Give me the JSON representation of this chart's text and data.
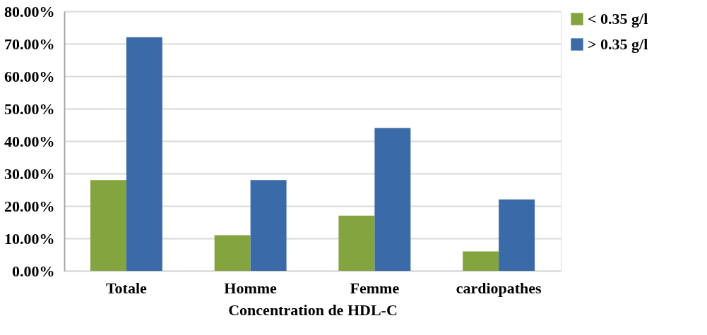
{
  "chart_data": {
    "type": "bar",
    "xlabel": "Concentration de HDL-C",
    "categories": [
      "Totale",
      "Homme",
      "Femme",
      "cardiopathes"
    ],
    "series": [
      {
        "name": "< 0.35 g/l",
        "color": "#84a43f",
        "values": [
          28,
          11,
          17,
          6
        ]
      },
      {
        "name": "> 0.35 g/l",
        "color": "#3a6aa8",
        "values": [
          72,
          28,
          44,
          22
        ]
      }
    ],
    "ylim": [
      0,
      80
    ],
    "yticks": [
      {
        "value": 0,
        "label": "0.00%"
      },
      {
        "value": 10,
        "label": "10.00%"
      },
      {
        "value": 20,
        "label": "20.00%"
      },
      {
        "value": 30,
        "label": "30.00%"
      },
      {
        "value": 40,
        "label": "40.00%"
      },
      {
        "value": 50,
        "label": "50.00%"
      },
      {
        "value": 60,
        "label": "60.00%"
      },
      {
        "value": 70,
        "label": "70.00%"
      },
      {
        "value": 80,
        "label": "80.00%"
      }
    ],
    "grid": "y",
    "legend": "right"
  }
}
